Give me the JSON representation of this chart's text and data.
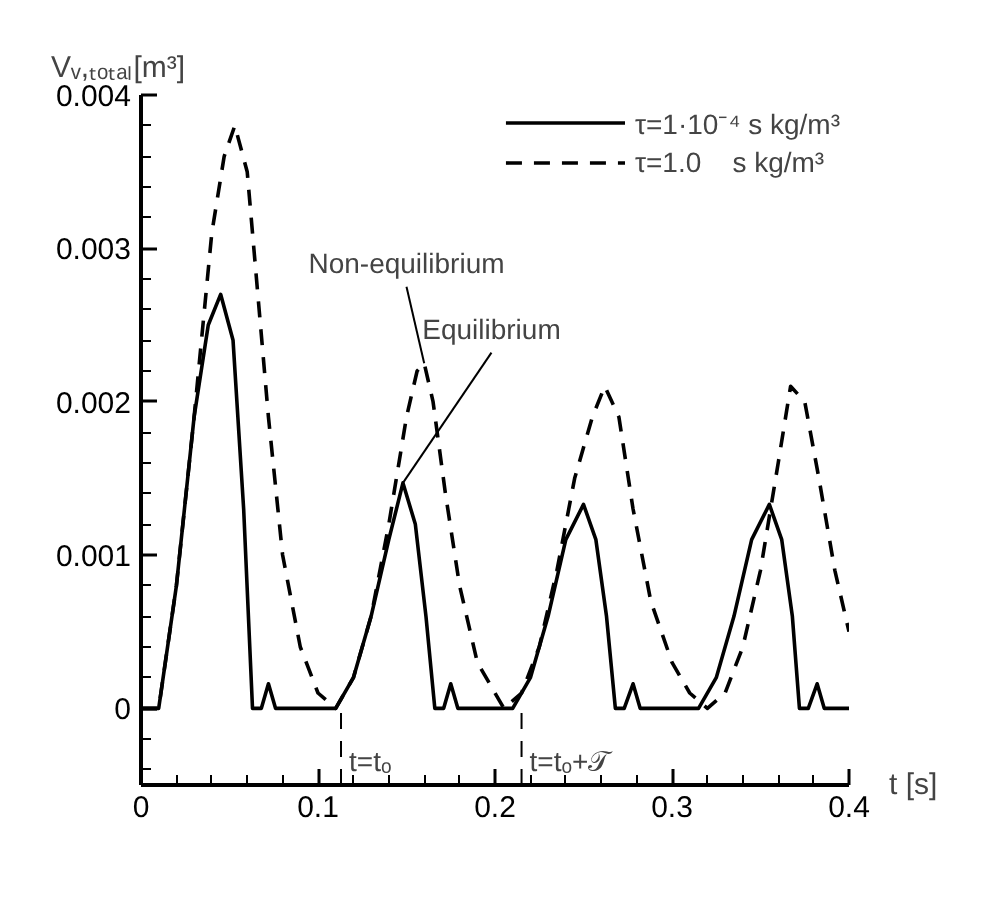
{
  "chart_data": {
    "type": "line",
    "ylabel": "Vᵥ,ₜₒₜₐₗ[m³]",
    "xlabel": "t [s]",
    "xlim": [
      0,
      0.4
    ],
    "ylim": [
      -0.0005,
      0.004
    ],
    "xticks": [
      0,
      0.1,
      0.2,
      0.3,
      0.4
    ],
    "yticks": [
      0,
      0.001,
      0.002,
      0.003,
      0.004
    ],
    "grid": false,
    "legend": "top right",
    "series": [
      {
        "name": "τ=1·10⁻⁴ s kg/m³",
        "color": "#000000",
        "line_style": "solid",
        "x": [
          0,
          0.01,
          0.02,
          0.03,
          0.038,
          0.045,
          0.052,
          0.058,
          0.063,
          0.068,
          0.072,
          0.076,
          0.11,
          0.12,
          0.13,
          0.14,
          0.148,
          0.155,
          0.161,
          0.166,
          0.171,
          0.175,
          0.179,
          0.21,
          0.22,
          0.23,
          0.24,
          0.25,
          0.257,
          0.263,
          0.268,
          0.273,
          0.278,
          0.282,
          0.315,
          0.325,
          0.335,
          0.345,
          0.355,
          0.362,
          0.368,
          0.372,
          0.377,
          0.382,
          0.386,
          0.4
        ],
        "values": [
          0,
          0,
          0.0008,
          0.0019,
          0.0025,
          0.0027,
          0.0024,
          0.0013,
          0,
          0,
          0.00016,
          0,
          0,
          0.0002,
          0.0006,
          0.0011,
          0.00147,
          0.0012,
          0.0006,
          0,
          0,
          0.00016,
          0,
          0,
          0.0002,
          0.0006,
          0.0011,
          0.00133,
          0.0011,
          0.0006,
          0,
          0,
          0.00016,
          0,
          0,
          0.0002,
          0.0006,
          0.0011,
          0.00133,
          0.0011,
          0.0006,
          0,
          0,
          0.00016,
          0,
          0
        ]
      },
      {
        "name": "τ=1.0    s kg/m³",
        "color": "#000000",
        "line_style": "dashed",
        "x": [
          0,
          0.01,
          0.02,
          0.03,
          0.04,
          0.047,
          0.053,
          0.06,
          0.066,
          0.072,
          0.08,
          0.09,
          0.1,
          0.11,
          0.12,
          0.13,
          0.14,
          0.15,
          0.156,
          0.16,
          0.165,
          0.172,
          0.18,
          0.19,
          0.2,
          0.205,
          0.215,
          0.225,
          0.235,
          0.245,
          0.255,
          0.262,
          0.27,
          0.278,
          0.288,
          0.3,
          0.31,
          0.32,
          0.33,
          0.34,
          0.35,
          0.36,
          0.367,
          0.375,
          0.383,
          0.392,
          0.4
        ],
        "values": [
          0,
          0,
          0.0008,
          0.0019,
          0.0031,
          0.0036,
          0.0038,
          0.0035,
          0.0027,
          0.0019,
          0.001,
          0.0004,
          0.0001,
          0,
          0.0002,
          0.0006,
          0.0012,
          0.0019,
          0.0022,
          0.00225,
          0.002,
          0.0014,
          0.0008,
          0.0003,
          0.0001,
          0,
          0.0001,
          0.0004,
          0.0009,
          0.0015,
          0.0019,
          0.0021,
          0.0019,
          0.0013,
          0.0007,
          0.0003,
          0.0001,
          0,
          0.0001,
          0.0004,
          0.0009,
          0.0016,
          0.0021,
          0.002,
          0.0015,
          0.0009,
          0.0005
        ]
      }
    ],
    "ref_lines": [
      {
        "axis": "x",
        "value": 0.113,
        "label": "t=tₒ",
        "line_style": "dashed",
        "color": "#000000"
      },
      {
        "axis": "x",
        "value": 0.215,
        "label": "t=tₒ+𝒯",
        "line_style": "dashed",
        "color": "#000000"
      }
    ],
    "annotations": [
      {
        "text": "Non-equilibrium",
        "x": 0.16,
        "y": 0.00225
      },
      {
        "text": "Equilibrium",
        "x": 0.148,
        "y": 0.00147
      }
    ]
  }
}
